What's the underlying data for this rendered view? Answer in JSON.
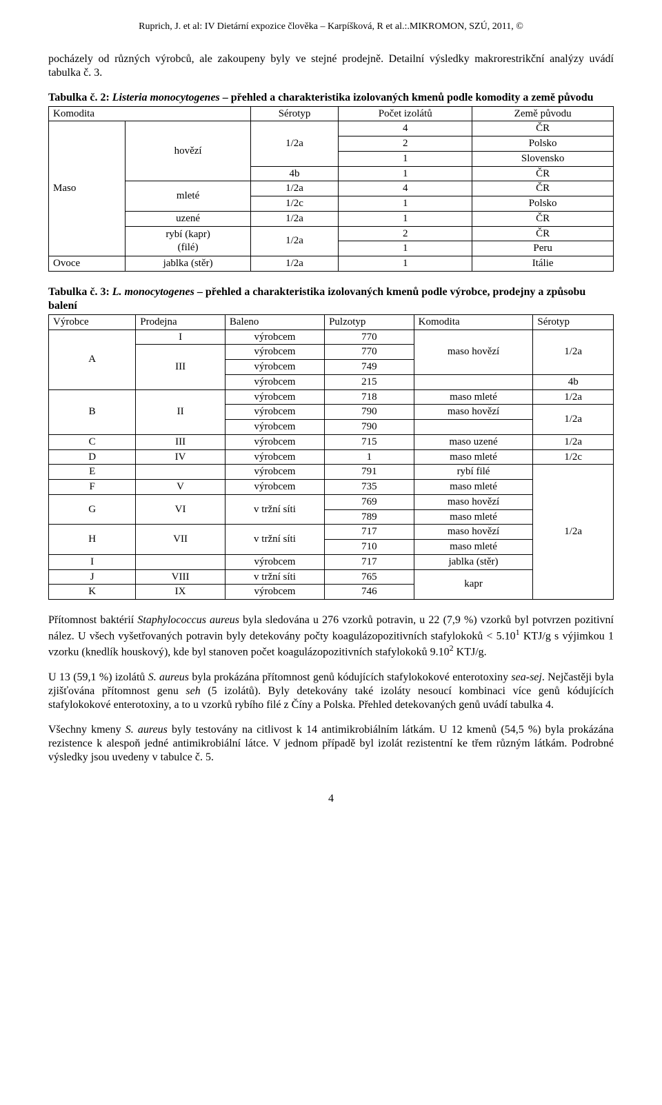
{
  "header": "Ruprich, J. et al: IV Dietární expozice člověka – Karpíšková, R et al.:.MIKROMON, SZÚ, 2011, ©",
  "intro_para": "pocházely od různých výrobců, ale zakoupeny byly ve stejné prodejně. Detailní výsledky makrorestrikční analýzy uvádí tabulka č. 3.",
  "table2": {
    "caption_lead": "Tabulka č. 2: ",
    "caption_italic": "Listeria monocytogenes",
    "caption_tail": " – přehled a charakteristika izolovaných kmenů podle komodity a země původu",
    "h": {
      "c1": "Komodita",
      "c2": "Sérotyp",
      "c3": "Počet izolátů",
      "c4": "Země původu"
    },
    "r1": {
      "c1": "Maso",
      "c2": "hovězí",
      "c3": "1/2a",
      "c4": "4",
      "c5": "ČR"
    },
    "r2": {
      "c4": "2",
      "c5": "Polsko"
    },
    "r3": {
      "c4": "1",
      "c5": "Slovensko"
    },
    "r4": {
      "c3": "4b",
      "c4": "1",
      "c5": "ČR"
    },
    "r5": {
      "c2": "mleté",
      "c3": "1/2a",
      "c4": "4",
      "c5": "ČR"
    },
    "r6": {
      "c3": "1/2c",
      "c4": "1",
      "c5": "Polsko"
    },
    "r7": {
      "c2": "uzené",
      "c3": "1/2a",
      "c4": "1",
      "c5": "ČR"
    },
    "r8": {
      "c2": "rybí (kapr)\n(filé)",
      "c3": "1/2a",
      "c4": "2",
      "c5": "ČR"
    },
    "r9": {
      "c4": "1",
      "c5": "Peru"
    },
    "r10": {
      "c1": "Ovoce",
      "c2": "jablka (stěr)",
      "c3": "1/2a",
      "c4": "1",
      "c5": "Itálie"
    }
  },
  "table3": {
    "caption_lead": "Tabulka č. 3: ",
    "caption_italic": "L. monocytogenes",
    "caption_tail": " – přehled a charakteristika izolovaných kmenů podle výrobce, prodejny a způsobu balení",
    "h": {
      "c1": "Výrobce",
      "c2": "Prodejna",
      "c3": "Baleno",
      "c4": "Pulzotyp",
      "c5": "Komodita",
      "c6": "Sérotyp"
    },
    "r1": {
      "c1": "A",
      "c2": "I",
      "c3": "výrobcem",
      "c4": "770",
      "c5": "maso hovězí",
      "c6": "1/2a"
    },
    "r2": {
      "c2": "III",
      "c3": "výrobcem",
      "c4": "770"
    },
    "r3": {
      "c3": "výrobcem",
      "c4": "749"
    },
    "r4": {
      "c3": "výrobcem",
      "c4": "215",
      "c6": "4b"
    },
    "r5": {
      "c1": "B",
      "c2": "II",
      "c3": "výrobcem",
      "c4": "718",
      "c5": "maso mleté",
      "c6": "1/2a"
    },
    "r6": {
      "c3": "výrobcem",
      "c4": "790",
      "c5": "maso hovězí",
      "c6": "1/2a"
    },
    "r7": {
      "c3": "výrobcem",
      "c4": "790"
    },
    "r8": {
      "c1": "C",
      "c2": "III",
      "c3": "výrobcem",
      "c4": "715",
      "c5": "maso uzené",
      "c6": "1/2a"
    },
    "r9": {
      "c1": "D",
      "c2": "IV",
      "c3": "výrobcem",
      "c4": "1",
      "c5": "maso mleté",
      "c6": "1/2c"
    },
    "r10": {
      "c1": "E",
      "c3": "výrobcem",
      "c4": "791",
      "c5": "rybí filé",
      "c6": "1/2a"
    },
    "r11": {
      "c1": "F",
      "c2": "V",
      "c3": "výrobcem",
      "c4": "735",
      "c5": "maso mleté"
    },
    "r12": {
      "c1": "G",
      "c2": "VI",
      "c3": "v tržní síti",
      "c4": "769",
      "c5": "maso hovězí"
    },
    "r13": {
      "c4": "789",
      "c5": "maso mleté"
    },
    "r14": {
      "c1": "H",
      "c2": "VII",
      "c3": "v tržní síti",
      "c4": "717",
      "c5": "maso hovězí"
    },
    "r15": {
      "c4": "710",
      "c5": "maso mleté"
    },
    "r16": {
      "c1": "I",
      "c3": "výrobcem",
      "c4": "717",
      "c5": "jablka (stěr)"
    },
    "r17": {
      "c1": "J",
      "c2": "VIII",
      "c3": "v tržní síti",
      "c4": "765",
      "c5": "kapr"
    },
    "r18": {
      "c1": "K",
      "c2": "IX",
      "c3": "výrobcem",
      "c4": "746"
    }
  },
  "p1": {
    "t1": "Přítomnost baktérií ",
    "it1": "Staphylococcus aureus",
    "t2": " byla sledována u 276 vzorků potravin, u 22 (7,9 %) vzorků byl potvrzen pozitivní nález. U všech vyšetřovaných potravin byly detekovány počty koagulázopozitivních stafylokoků < 5.10",
    "s1": "1",
    "t3": " KTJ/g s výjimkou 1 vzorku (knedlík houskový), kde byl stanoven počet koagulázopozitivních stafylokoků 9.10",
    "s2": "2",
    "t4": " KTJ/g."
  },
  "p2": {
    "t1": "U 13 (59,1 %) izolátů ",
    "it1": "S. aureus",
    "t2": " byla prokázána přítomnost genů kódujících stafylokokové enterotoxiny ",
    "it2": "sea-sej",
    "t3": ". Nejčastěji byla zjišťována přítomnost genu ",
    "it3": "seh",
    "t4": " (5 izolátů). Byly detekovány také izoláty nesoucí kombinaci více genů kódujících stafylokokové enterotoxiny, a to u vzorků rybího filé z Číny a Polska. Přehled detekovaných genů uvádí tabulka 4."
  },
  "p3": {
    "t1": "Všechny kmeny ",
    "it1": "S. aureus",
    "t2": " byly testovány na citlivost k 14 antimikrobiálním látkám. U 12 kmenů (54,5 %) byla prokázána rezistence k alespoň jedné antimikrobiální látce. V jednom případě byl izolát rezistentní ke třem různým látkám. Podrobné výsledky jsou uvedeny v tabulce č. 5."
  },
  "page_number": "4"
}
